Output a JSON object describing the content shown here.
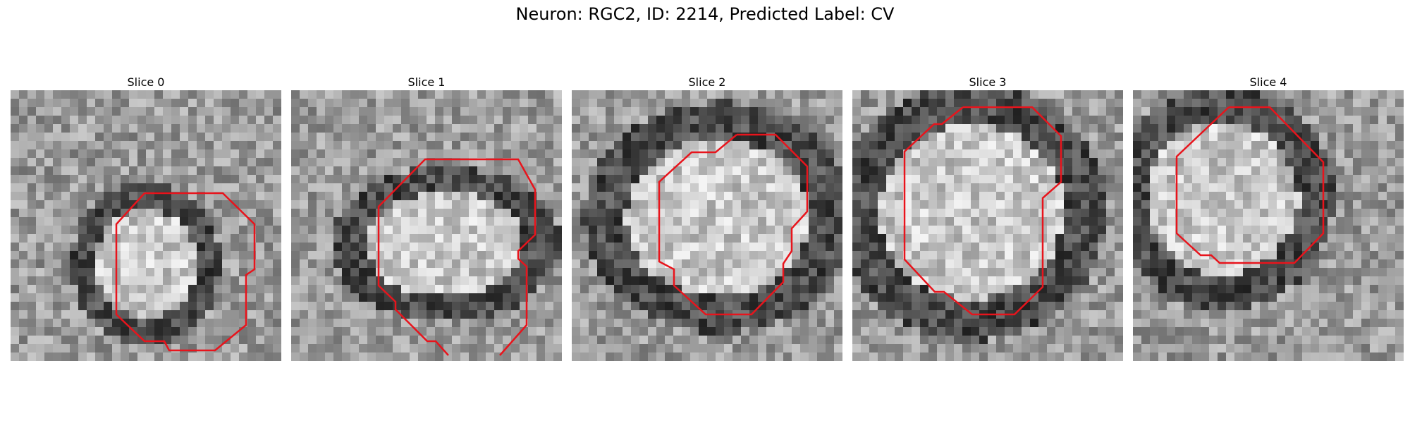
{
  "figure": {
    "title": "Neuron: RGC2, ID: 2214, Predicted Label: CV"
  },
  "panels": [
    {
      "title": "Slice 0",
      "ring_center": [
        0.5,
        0.64
      ],
      "ring_radius": [
        0.22,
        0.24
      ],
      "inner_bright": true
    },
    {
      "title": "Slice 1",
      "ring_center": [
        0.57,
        0.57
      ],
      "ring_radius": [
        0.34,
        0.23
      ],
      "inner_bright": true
    },
    {
      "title": "Slice 2",
      "ring_center": [
        0.54,
        0.47
      ],
      "ring_radius": [
        0.4,
        0.34
      ],
      "inner_bright": true
    },
    {
      "title": "Slice 3",
      "ring_center": [
        0.44,
        0.45
      ],
      "ring_radius": [
        0.4,
        0.38
      ],
      "inner_bright": true
    },
    {
      "title": "Slice 4",
      "ring_center": [
        0.33,
        0.4
      ],
      "ring_radius": [
        0.33,
        0.33
      ],
      "inner_bright": true
    }
  ],
  "colors": {
    "contour": "#e8141c"
  }
}
